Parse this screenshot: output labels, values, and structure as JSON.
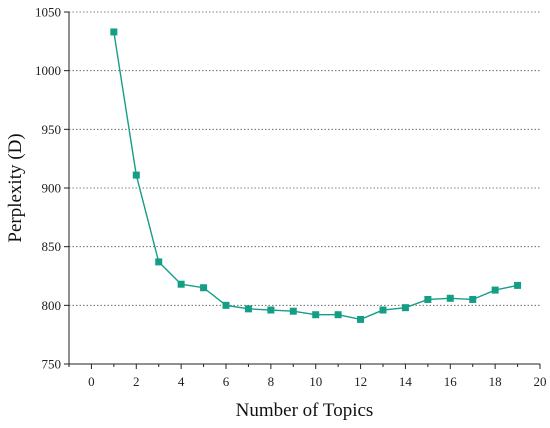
{
  "chart_data": {
    "type": "line",
    "title": "",
    "xlabel": "Number of Topics",
    "ylabel": "Perplexity (D)",
    "xlim": [
      -1,
      20
    ],
    "ylim": [
      750,
      1050
    ],
    "xticks": [
      0,
      2,
      4,
      6,
      8,
      10,
      12,
      14,
      16,
      18,
      20
    ],
    "yticks": [
      750,
      800,
      850,
      900,
      950,
      1000,
      1050
    ],
    "xtick_labels": [
      "0",
      "2",
      "4",
      "6",
      "8",
      "10",
      "12",
      "14",
      "16",
      "18",
      "20"
    ],
    "ytick_labels": [
      "750",
      "800",
      "850",
      "900",
      "950",
      "1000",
      "1050"
    ],
    "grid": "horizontal dotted",
    "series": [
      {
        "color": "#149e86",
        "marker": "square",
        "x": [
          1,
          2,
          3,
          4,
          5,
          6,
          7,
          8,
          9,
          10,
          11,
          12,
          13,
          14,
          15,
          16,
          17,
          18,
          19
        ],
        "y": [
          1033,
          911,
          837,
          818,
          815,
          800,
          797,
          796,
          795,
          792,
          792,
          788,
          796,
          798,
          805,
          806,
          805,
          813,
          817
        ]
      }
    ]
  }
}
